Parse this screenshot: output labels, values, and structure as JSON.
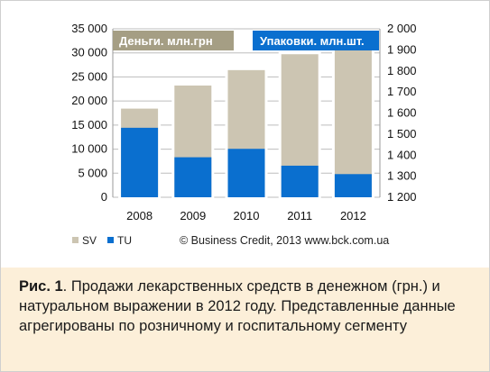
{
  "chart_data": {
    "type": "bar",
    "categories": [
      "2008",
      "2009",
      "2010",
      "2011",
      "2012"
    ],
    "series": [
      {
        "name": "SV",
        "axis": "left",
        "unit": "Деньги. млн.грн",
        "color": "#ccc5b2",
        "values": [
          18700,
          23500,
          26700,
          30000,
          32000
        ]
      },
      {
        "name": "TU",
        "axis": "right",
        "unit": "Упаковки. млн.шт.",
        "color": "#0a6fcf",
        "values": [
          1530,
          1390,
          1430,
          1350,
          1310
        ]
      }
    ],
    "left_axis": {
      "label": "Деньги. млн.грн",
      "min": 0,
      "max": 35000,
      "step": 5000,
      "ticks": [
        "0",
        "5 000",
        "10 000",
        "15 000",
        "20 000",
        "25 000",
        "30 000",
        "35 000"
      ]
    },
    "right_axis": {
      "label": "Упаковки. млн.шт.",
      "min": 1200,
      "max": 2000,
      "step": 100,
      "ticks": [
        "1 200",
        "1 300",
        "1 400",
        "1 500",
        "1 600",
        "1 700",
        "1 800",
        "1 900",
        "2 000"
      ]
    },
    "left_label_bg": "#a59e84",
    "right_label_bg": "#0a6fcf",
    "legend": {
      "position": "bottom-left",
      "items": [
        "SV",
        "TU"
      ]
    },
    "copyright": "© Business Credit, 2013  www.bck.com.ua"
  },
  "caption": {
    "lead": "Рис. 1",
    "text": ". Продажи лекарственных средств в денежном (грн.) и натуральном выражении в 2012 году. Представленные данные агрегированы по розничному и госпитальному сегменту"
  }
}
